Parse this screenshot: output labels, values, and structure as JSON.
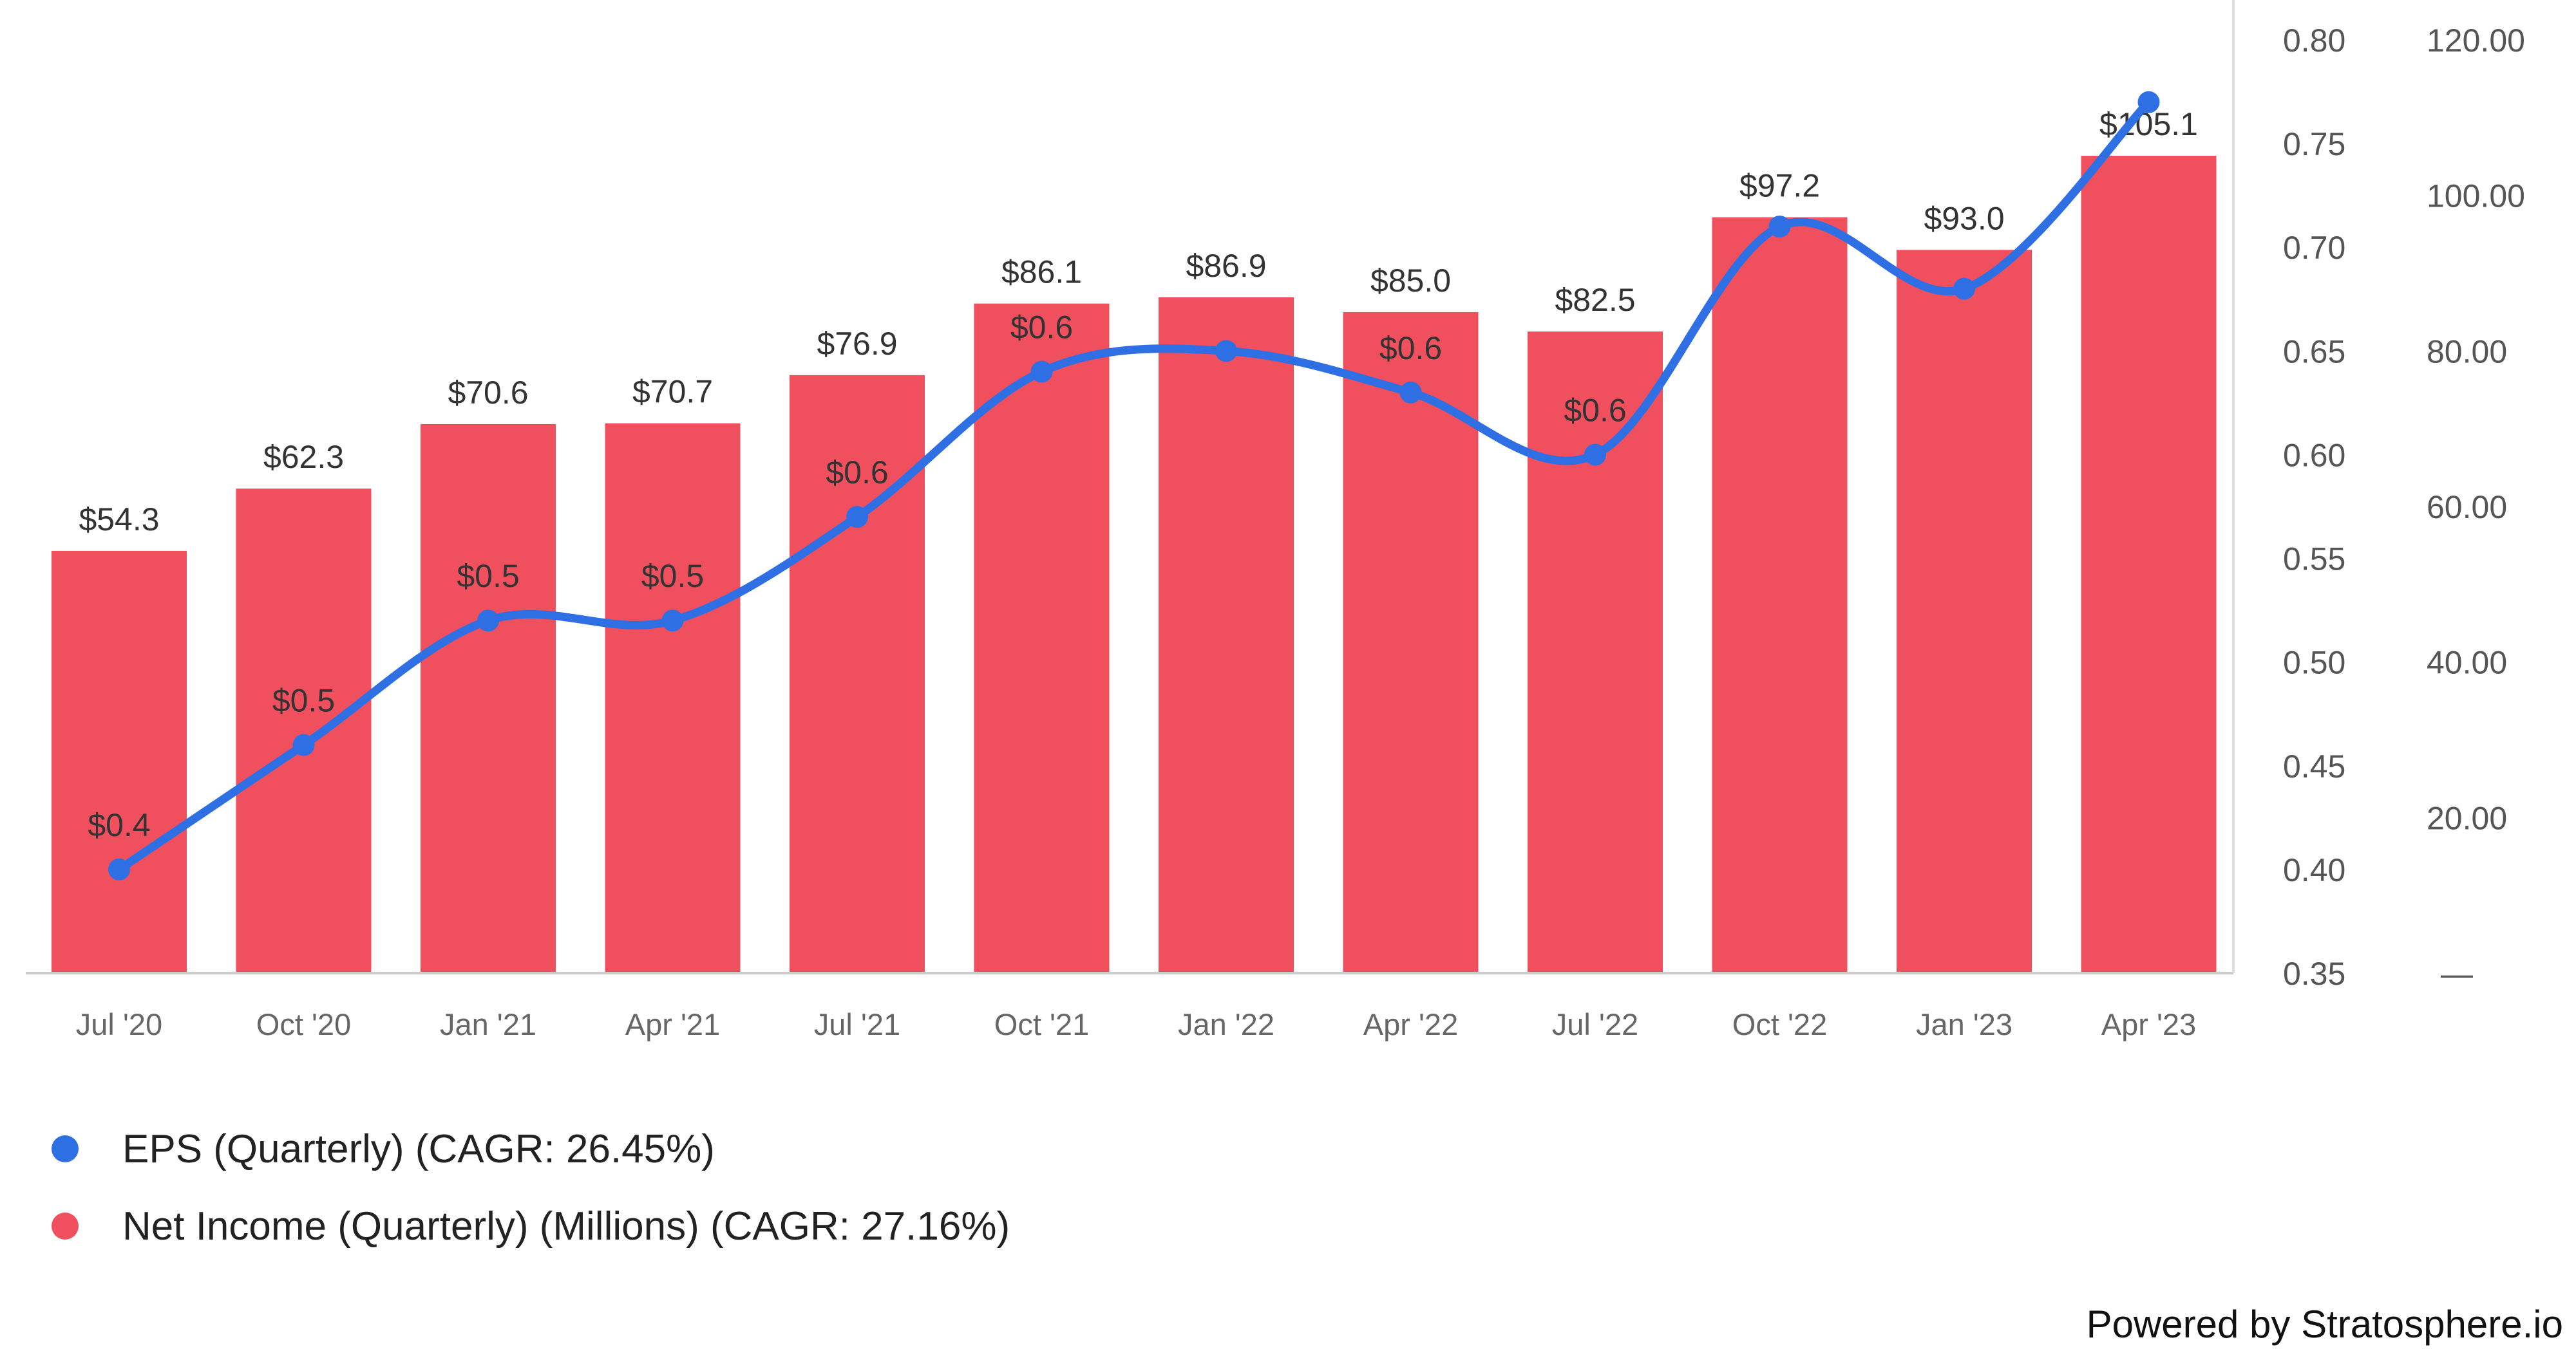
{
  "chart_data": {
    "type": "bar",
    "categories": [
      "Jul '20",
      "Oct '20",
      "Jan '21",
      "Apr '21",
      "Jul '21",
      "Oct '21",
      "Jan '22",
      "Apr '22",
      "Jul '22",
      "Oct '22",
      "Jan '23",
      "Apr '23"
    ],
    "series": [
      {
        "name": "Net Income (Quarterly) (Millions) (CAGR: 27.16%)",
        "type": "bar",
        "axis": "right-outer",
        "color": "#f0505e",
        "values": [
          54.3,
          62.3,
          70.6,
          70.7,
          76.9,
          86.1,
          86.9,
          85.0,
          82.5,
          97.2,
          93.0,
          105.1
        ],
        "labels": [
          "$54.3",
          "$62.3",
          "$70.6",
          "$70.7",
          "$76.9",
          "$86.1",
          "$86.9",
          "$85.0",
          "$82.5",
          "$97.2",
          "$93.0",
          "$105.1"
        ]
      },
      {
        "name": "EPS (Quarterly) (CAGR: 26.45%)",
        "type": "line",
        "axis": "right-inner",
        "color": "#2f6fe4",
        "values": [
          0.4,
          0.46,
          0.52,
          0.52,
          0.57,
          0.64,
          0.65,
          0.63,
          0.6,
          0.71,
          0.68,
          0.77
        ],
        "labels": [
          "$0.4",
          "$0.5",
          "$0.5",
          "$0.5",
          "$0.6",
          "$0.6",
          "",
          "$0.6",
          "$0.6",
          "",
          "",
          ""
        ]
      }
    ],
    "y_eps": {
      "ylim": [
        0.35,
        0.8
      ],
      "ticks": [
        "0.80",
        "0.75",
        "0.70",
        "0.65",
        "0.60",
        "0.55",
        "0.50",
        "0.45",
        "0.40",
        "0.35"
      ]
    },
    "y_income": {
      "ylim": [
        0,
        120
      ],
      "ticks": [
        "120.00",
        "100.00",
        "80.00",
        "60.00",
        "40.00",
        "20.00",
        "—"
      ]
    },
    "grid": false,
    "legend_position": "bottom-left"
  },
  "legend": [
    {
      "label": "EPS (Quarterly) (CAGR: 26.45%)",
      "color": "#2f6fe4"
    },
    {
      "label": "Net Income (Quarterly) (Millions) (CAGR: 27.16%)",
      "color": "#f0505e"
    }
  ],
  "footer": {
    "powered_by": "Powered by Stratosphere.io"
  }
}
